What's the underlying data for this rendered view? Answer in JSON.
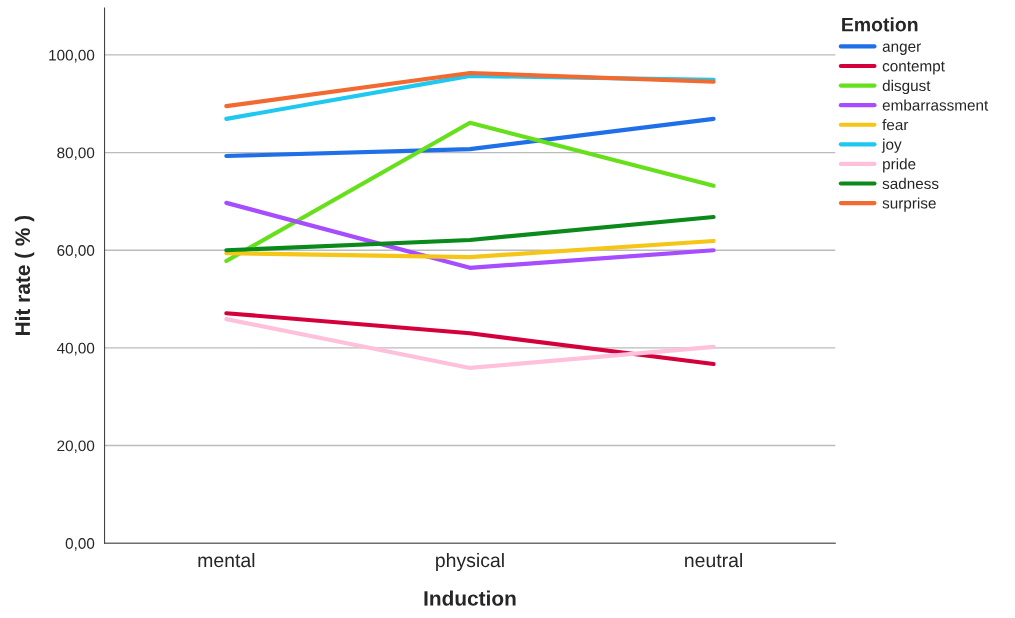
{
  "chart_data": {
    "type": "line",
    "xlabel": "Induction",
    "ylabel": "Hit rate ( % )",
    "legend_title": "Emotion",
    "legend": "top right",
    "grid": "y",
    "categories": [
      "mental",
      "physical",
      "neutral"
    ],
    "ylim": [
      0,
      109.6
    ],
    "yticks": [
      {
        "value": 0,
        "label": "0,00"
      },
      {
        "value": 20,
        "label": "20,00"
      },
      {
        "value": 40,
        "label": "40,00"
      },
      {
        "value": 60,
        "label": "60,00"
      },
      {
        "value": 80,
        "label": "80,00"
      },
      {
        "value": 100,
        "label": "100,00"
      }
    ],
    "series": [
      {
        "name": "anger",
        "color": "#1f6fe8",
        "values": [
          79.3,
          80.7,
          86.9
        ]
      },
      {
        "name": "contempt",
        "color": "#d4003c",
        "values": [
          47.1,
          43.0,
          36.7
        ]
      },
      {
        "name": "disgust",
        "color": "#66e01a",
        "values": [
          57.8,
          86.1,
          73.2
        ]
      },
      {
        "name": "embarrassment",
        "color": "#a64dff",
        "values": [
          69.7,
          56.4,
          60.0
        ]
      },
      {
        "name": "fear",
        "color": "#f5c518",
        "values": [
          59.4,
          58.6,
          61.9
        ]
      },
      {
        "name": "joy",
        "color": "#1ec8f0",
        "values": [
          86.9,
          95.7,
          94.9
        ]
      },
      {
        "name": "pride",
        "color": "#ffc0dc",
        "values": [
          45.9,
          35.9,
          40.2
        ]
      },
      {
        "name": "sadness",
        "color": "#0a8a1a",
        "values": [
          60.0,
          62.1,
          66.8
        ]
      },
      {
        "name": "surprise",
        "color": "#f26a30",
        "values": [
          89.5,
          96.3,
          94.5
        ]
      }
    ]
  }
}
